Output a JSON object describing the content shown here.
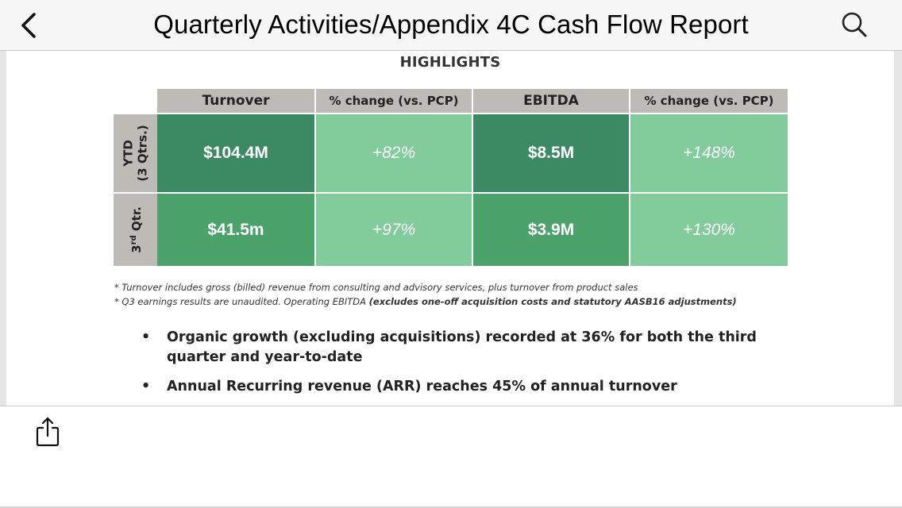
{
  "nav": {
    "title": "Quarterly Activities/Appendix 4C Cash Flow Report",
    "back_icon": "chevron-left-icon",
    "search_icon": "search-icon"
  },
  "doc": {
    "heading": "HIGHLIGHTS",
    "table": {
      "headers": [
        "Turnover",
        "% change (vs. PCP)",
        "EBITDA",
        "% change (vs. PCP)"
      ],
      "rows": [
        {
          "label_line1": "YTD",
          "label_line2": "(3 Qtrs.)",
          "cells": [
            "$104.4M",
            "+82%",
            "$8.5M",
            "+148%"
          ]
        },
        {
          "label_main": "3",
          "label_sup": "rd",
          "label_rest": " Qtr.",
          "cells": [
            "$41.5m",
            "+97%",
            "$3.9M",
            "+130%"
          ]
        }
      ],
      "colors": {
        "header_bg": "#bcbbb6",
        "dark_green": "#3b8a63",
        "mid_green": "#4ba36b",
        "light_green": "#82cb9b"
      }
    },
    "footnotes": {
      "line1": "* Turnover includes gross (billed) revenue from consulting and advisory services, plus turnover from product sales",
      "line2_prefix": "* Q3 earnings results are unaudited. Operating EBITDA ",
      "line2_bold": "(excludes one-off acquisition costs and statutory AASB16 adjustments)"
    },
    "bullets": [
      {
        "marker": "•",
        "text": "Organic growth (excluding acquisitions) recorded at 36% for both the third quarter and year-to-date"
      },
      {
        "marker": "•",
        "text": "Annual Recurring revenue (ARR) reaches 45% of annual turnover"
      }
    ]
  },
  "toolbar": {
    "share_icon": "share-icon"
  }
}
